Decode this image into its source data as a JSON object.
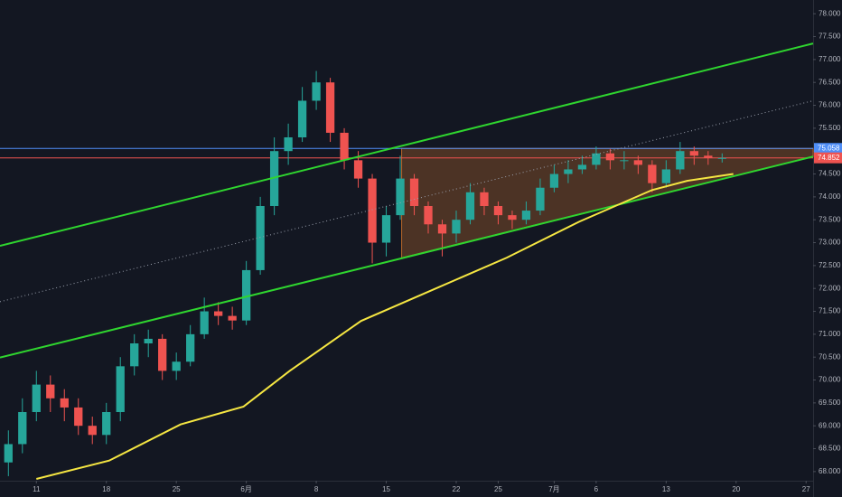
{
  "chart_data": {
    "type": "candlestick",
    "x": [
      -2,
      -1,
      0,
      1,
      2,
      3,
      4,
      5,
      6,
      7,
      8,
      9,
      10,
      11,
      12,
      13,
      14,
      15,
      16,
      17,
      18,
      19,
      20,
      21,
      22,
      23,
      24,
      25,
      26,
      27,
      28,
      29,
      30,
      31,
      32,
      33,
      34,
      35,
      36,
      37,
      38,
      39,
      40,
      41,
      42,
      43,
      44,
      45,
      46,
      47,
      48,
      49
    ],
    "open": [
      68.2,
      68.6,
      69.3,
      69.9,
      69.6,
      69.4,
      69.0,
      68.8,
      69.3,
      70.3,
      70.8,
      70.9,
      70.2,
      70.4,
      71.0,
      71.5,
      71.4,
      71.3,
      72.4,
      73.8,
      75.0,
      75.3,
      76.1,
      76.5,
      75.4,
      74.8,
      74.4,
      73.0,
      73.6,
      74.4,
      73.8,
      73.4,
      73.2,
      73.5,
      74.1,
      73.8,
      73.6,
      73.5,
      73.7,
      74.2,
      74.5,
      74.6,
      74.7,
      74.95,
      74.8,
      74.8,
      74.7,
      74.3,
      74.6,
      75.0,
      74.9,
      74.85
    ],
    "high": [
      68.9,
      69.6,
      70.2,
      70.1,
      69.8,
      69.6,
      69.2,
      69.5,
      70.5,
      71.0,
      71.1,
      71.0,
      70.6,
      71.2,
      71.8,
      71.7,
      71.6,
      72.6,
      74.0,
      75.3,
      75.6,
      76.4,
      76.75,
      76.6,
      75.5,
      75.0,
      74.5,
      73.8,
      74.9,
      74.5,
      73.9,
      73.5,
      73.7,
      74.3,
      74.2,
      73.9,
      73.7,
      73.9,
      74.4,
      74.7,
      74.8,
      74.9,
      75.1,
      75.05,
      75.0,
      74.9,
      74.8,
      74.8,
      75.2,
      75.1,
      75.0,
      74.95
    ],
    "low": [
      67.9,
      68.4,
      69.1,
      69.3,
      69.1,
      68.8,
      68.6,
      68.6,
      69.1,
      70.1,
      70.5,
      70.0,
      70.0,
      70.3,
      70.9,
      71.2,
      71.1,
      71.2,
      72.3,
      73.6,
      74.7,
      75.2,
      75.9,
      75.2,
      74.6,
      74.2,
      72.55,
      72.7,
      73.5,
      73.6,
      73.2,
      72.7,
      73.0,
      73.4,
      73.6,
      73.4,
      73.3,
      73.4,
      73.6,
      74.1,
      74.3,
      74.5,
      74.6,
      74.6,
      74.6,
      74.5,
      74.1,
      74.2,
      74.5,
      74.7,
      74.7,
      74.75
    ],
    "close": [
      68.6,
      69.3,
      69.9,
      69.6,
      69.4,
      69.0,
      68.8,
      69.3,
      70.3,
      70.8,
      70.9,
      70.2,
      70.4,
      71.0,
      71.5,
      71.4,
      71.3,
      72.4,
      73.8,
      75.0,
      75.3,
      76.1,
      76.5,
      75.4,
      74.8,
      74.4,
      73.0,
      73.6,
      74.4,
      73.8,
      73.4,
      73.2,
      73.5,
      74.1,
      73.8,
      73.6,
      73.5,
      73.7,
      74.2,
      74.5,
      74.6,
      74.7,
      74.95,
      74.8,
      74.8,
      74.7,
      74.3,
      74.6,
      75.0,
      74.9,
      74.85,
      74.85
    ],
    "up_color": "#26a69a",
    "down_color": "#ef5350",
    "xlim": [
      -2.6,
      55.5
    ],
    "xticks": [
      {
        "value": 0,
        "label": "11"
      },
      {
        "value": 5,
        "label": "18"
      },
      {
        "value": 10,
        "label": "25"
      },
      {
        "value": 15,
        "label": "6月"
      },
      {
        "value": 20,
        "label": "8"
      },
      {
        "value": 25,
        "label": "15"
      },
      {
        "value": 30,
        "label": "22"
      },
      {
        "value": 33,
        "label": "25"
      },
      {
        "value": 37,
        "label": "7月"
      },
      {
        "value": 40,
        "label": "6"
      },
      {
        "value": 45,
        "label": "13"
      },
      {
        "value": 50,
        "label": "20"
      },
      {
        "value": 55,
        "label": "27"
      }
    ],
    "ylim": [
      67.8,
      78.3
    ],
    "yticks": [
      {
        "value": 68,
        "label": "68.000"
      },
      {
        "value": 68.5,
        "label": "68.500"
      },
      {
        "value": 69,
        "label": "69.000"
      },
      {
        "value": 69.5,
        "label": "69.500"
      },
      {
        "value": 70,
        "label": "70.000"
      },
      {
        "value": 70.5,
        "label": "70.500"
      },
      {
        "value": 71,
        "label": "71.000"
      },
      {
        "value": 71.5,
        "label": "71.500"
      },
      {
        "value": 72,
        "label": "72.000"
      },
      {
        "value": 72.5,
        "label": "72.500"
      },
      {
        "value": 73,
        "label": "73.000"
      },
      {
        "value": 73.5,
        "label": "73.500"
      },
      {
        "value": 74,
        "label": "74.000"
      },
      {
        "value": 74.5,
        "label": "74.500"
      },
      {
        "value": 75,
        "label": "75.000"
      },
      {
        "value": 75.5,
        "label": "75.500"
      },
      {
        "value": 76,
        "label": "76.000"
      },
      {
        "value": 76.5,
        "label": "76.500"
      },
      {
        "value": 77,
        "label": "77.000"
      },
      {
        "value": 77.5,
        "label": "77.500"
      },
      {
        "value": 78,
        "label": "78.000"
      }
    ],
    "grid": false,
    "zone": {
      "color": "#b8662a",
      "x": [
        26.1,
        55.5,
        55.5,
        26.1
      ],
      "y": [
        75.058,
        75.058,
        74.88,
        72.67
      ]
    },
    "lines": [
      {
        "color": "#2fd52f",
        "style": "solid",
        "x": [
          -2.6,
          55.5
        ],
        "y": [
          72.93,
          77.35
        ]
      },
      {
        "color": "#2fd52f",
        "style": "solid",
        "x": [
          -2.6,
          55.5
        ],
        "y": [
          70.49,
          74.88
        ]
      },
      {
        "color": "#9aa0ad",
        "style": "dotted",
        "x": [
          -2.6,
          55.5
        ],
        "y": [
          71.71,
          76.1
        ]
      }
    ],
    "ma": {
      "color": "#f5e642",
      "x": [
        0,
        5.2,
        10.3,
        14.8,
        18.1,
        23.2,
        28.4,
        33.6,
        38.8,
        44,
        46.5,
        49.8
      ],
      "y": [
        67.84,
        68.24,
        69.03,
        69.42,
        70.2,
        71.29,
        71.98,
        72.67,
        73.46,
        74.15,
        74.35,
        74.5
      ]
    },
    "price_lines": [
      {
        "value": 75.058,
        "label": "75.058",
        "color": "#4f8ef7"
      },
      {
        "value": 74.852,
        "label": "74.852",
        "color": "#ef5350"
      }
    ]
  }
}
